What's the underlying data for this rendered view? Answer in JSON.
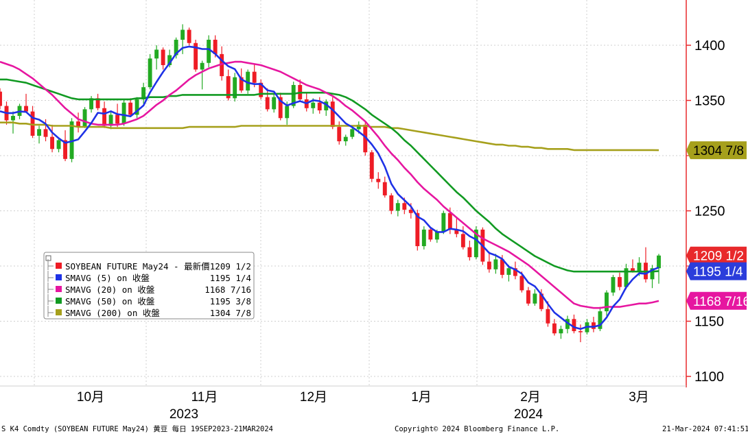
{
  "chart_data": {
    "type": "candlestick",
    "y_ticks": [
      1100,
      1150,
      1250,
      1350,
      1400
    ],
    "ylim": [
      1098,
      1435
    ],
    "x_labels": {
      "months": [
        "10月",
        "11月",
        "12月",
        "1月",
        "2月",
        "3月"
      ],
      "years": [
        "2023",
        "2024"
      ]
    },
    "colors": {
      "up": "#22aa22",
      "down": "#ee1c25",
      "sma5": "#1e32e6",
      "sma20": "#e616a0",
      "sma50": "#119a22",
      "sma200": "#a6a01c",
      "axis": "#e8292b",
      "grid": "#cfcfcf"
    },
    "candles": [
      {
        "o": 1358,
        "h": 1361,
        "l": 1342,
        "c": 1345
      },
      {
        "o": 1345,
        "h": 1349,
        "l": 1328,
        "c": 1332
      },
      {
        "o": 1332,
        "h": 1340,
        "l": 1320,
        "c": 1336
      },
      {
        "o": 1336,
        "h": 1347,
        "l": 1333,
        "c": 1345
      },
      {
        "o": 1345,
        "h": 1356,
        "l": 1339,
        "c": 1340
      },
      {
        "o": 1340,
        "h": 1345,
        "l": 1316,
        "c": 1318
      },
      {
        "o": 1318,
        "h": 1327,
        "l": 1311,
        "c": 1324
      },
      {
        "o": 1324,
        "h": 1333,
        "l": 1313,
        "c": 1317
      },
      {
        "o": 1317,
        "h": 1328,
        "l": 1303,
        "c": 1306
      },
      {
        "o": 1306,
        "h": 1316,
        "l": 1303,
        "c": 1314
      },
      {
        "o": 1314,
        "h": 1323,
        "l": 1295,
        "c": 1297
      },
      {
        "o": 1297,
        "h": 1334,
        "l": 1294,
        "c": 1331
      },
      {
        "o": 1331,
        "h": 1339,
        "l": 1321,
        "c": 1326
      },
      {
        "o": 1326,
        "h": 1344,
        "l": 1325,
        "c": 1342
      },
      {
        "o": 1342,
        "h": 1354,
        "l": 1339,
        "c": 1352
      },
      {
        "o": 1352,
        "h": 1356,
        "l": 1341,
        "c": 1343
      },
      {
        "o": 1343,
        "h": 1349,
        "l": 1325,
        "c": 1327
      },
      {
        "o": 1327,
        "h": 1340,
        "l": 1324,
        "c": 1337
      },
      {
        "o": 1337,
        "h": 1347,
        "l": 1326,
        "c": 1329
      },
      {
        "o": 1329,
        "h": 1351,
        "l": 1327,
        "c": 1348
      },
      {
        "o": 1348,
        "h": 1352,
        "l": 1335,
        "c": 1337
      },
      {
        "o": 1337,
        "h": 1353,
        "l": 1334,
        "c": 1351
      },
      {
        "o": 1351,
        "h": 1366,
        "l": 1347,
        "c": 1362
      },
      {
        "o": 1362,
        "h": 1392,
        "l": 1360,
        "c": 1388
      },
      {
        "o": 1388,
        "h": 1400,
        "l": 1378,
        "c": 1396
      },
      {
        "o": 1396,
        "h": 1398,
        "l": 1378,
        "c": 1382
      },
      {
        "o": 1382,
        "h": 1396,
        "l": 1380,
        "c": 1391
      },
      {
        "o": 1391,
        "h": 1407,
        "l": 1388,
        "c": 1405
      },
      {
        "o": 1405,
        "h": 1419,
        "l": 1392,
        "c": 1414
      },
      {
        "o": 1414,
        "h": 1416,
        "l": 1400,
        "c": 1402
      },
      {
        "o": 1402,
        "h": 1405,
        "l": 1376,
        "c": 1378
      },
      {
        "o": 1378,
        "h": 1386,
        "l": 1360,
        "c": 1384
      },
      {
        "o": 1384,
        "h": 1409,
        "l": 1380,
        "c": 1405
      },
      {
        "o": 1405,
        "h": 1409,
        "l": 1389,
        "c": 1392
      },
      {
        "o": 1392,
        "h": 1399,
        "l": 1368,
        "c": 1372
      },
      {
        "o": 1372,
        "h": 1378,
        "l": 1350,
        "c": 1352
      },
      {
        "o": 1352,
        "h": 1375,
        "l": 1349,
        "c": 1371
      },
      {
        "o": 1371,
        "h": 1379,
        "l": 1357,
        "c": 1359
      },
      {
        "o": 1359,
        "h": 1378,
        "l": 1356,
        "c": 1376
      },
      {
        "o": 1376,
        "h": 1383,
        "l": 1362,
        "c": 1366
      },
      {
        "o": 1366,
        "h": 1369,
        "l": 1351,
        "c": 1353
      },
      {
        "o": 1353,
        "h": 1361,
        "l": 1340,
        "c": 1342
      },
      {
        "o": 1342,
        "h": 1356,
        "l": 1339,
        "c": 1353
      },
      {
        "o": 1353,
        "h": 1357,
        "l": 1332,
        "c": 1334
      },
      {
        "o": 1334,
        "h": 1349,
        "l": 1328,
        "c": 1345
      },
      {
        "o": 1345,
        "h": 1367,
        "l": 1343,
        "c": 1364
      },
      {
        "o": 1364,
        "h": 1369,
        "l": 1349,
        "c": 1351
      },
      {
        "o": 1351,
        "h": 1357,
        "l": 1340,
        "c": 1343
      },
      {
        "o": 1343,
        "h": 1352,
        "l": 1338,
        "c": 1348
      },
      {
        "o": 1348,
        "h": 1353,
        "l": 1338,
        "c": 1341
      },
      {
        "o": 1341,
        "h": 1351,
        "l": 1336,
        "c": 1349
      },
      {
        "o": 1349,
        "h": 1353,
        "l": 1324,
        "c": 1326
      },
      {
        "o": 1326,
        "h": 1331,
        "l": 1310,
        "c": 1313
      },
      {
        "o": 1313,
        "h": 1319,
        "l": 1309,
        "c": 1317
      },
      {
        "o": 1317,
        "h": 1327,
        "l": 1315,
        "c": 1324
      },
      {
        "o": 1324,
        "h": 1331,
        "l": 1320,
        "c": 1328
      },
      {
        "o": 1328,
        "h": 1331,
        "l": 1300,
        "c": 1303
      },
      {
        "o": 1303,
        "h": 1305,
        "l": 1276,
        "c": 1279
      },
      {
        "o": 1279,
        "h": 1285,
        "l": 1270,
        "c": 1276
      },
      {
        "o": 1276,
        "h": 1281,
        "l": 1262,
        "c": 1264
      },
      {
        "o": 1264,
        "h": 1266,
        "l": 1247,
        "c": 1250
      },
      {
        "o": 1250,
        "h": 1260,
        "l": 1245,
        "c": 1257
      },
      {
        "o": 1257,
        "h": 1262,
        "l": 1247,
        "c": 1251
      },
      {
        "o": 1251,
        "h": 1257,
        "l": 1243,
        "c": 1248
      },
      {
        "o": 1248,
        "h": 1251,
        "l": 1214,
        "c": 1218
      },
      {
        "o": 1218,
        "h": 1236,
        "l": 1215,
        "c": 1233
      },
      {
        "o": 1233,
        "h": 1235,
        "l": 1222,
        "c": 1224
      },
      {
        "o": 1224,
        "h": 1233,
        "l": 1221,
        "c": 1231
      },
      {
        "o": 1231,
        "h": 1250,
        "l": 1229,
        "c": 1248
      },
      {
        "o": 1248,
        "h": 1253,
        "l": 1229,
        "c": 1233
      },
      {
        "o": 1233,
        "h": 1244,
        "l": 1226,
        "c": 1229
      },
      {
        "o": 1229,
        "h": 1236,
        "l": 1215,
        "c": 1217
      },
      {
        "o": 1217,
        "h": 1223,
        "l": 1205,
        "c": 1208
      },
      {
        "o": 1208,
        "h": 1236,
        "l": 1206,
        "c": 1233
      },
      {
        "o": 1233,
        "h": 1235,
        "l": 1201,
        "c": 1204
      },
      {
        "o": 1204,
        "h": 1213,
        "l": 1194,
        "c": 1197
      },
      {
        "o": 1197,
        "h": 1211,
        "l": 1193,
        "c": 1206
      },
      {
        "o": 1206,
        "h": 1210,
        "l": 1189,
        "c": 1192
      },
      {
        "o": 1192,
        "h": 1201,
        "l": 1186,
        "c": 1198
      },
      {
        "o": 1198,
        "h": 1204,
        "l": 1188,
        "c": 1191
      },
      {
        "o": 1191,
        "h": 1195,
        "l": 1176,
        "c": 1178
      },
      {
        "o": 1178,
        "h": 1181,
        "l": 1164,
        "c": 1166
      },
      {
        "o": 1166,
        "h": 1179,
        "l": 1164,
        "c": 1175
      },
      {
        "o": 1175,
        "h": 1179,
        "l": 1159,
        "c": 1161
      },
      {
        "o": 1161,
        "h": 1168,
        "l": 1145,
        "c": 1148
      },
      {
        "o": 1148,
        "h": 1152,
        "l": 1137,
        "c": 1139
      },
      {
        "o": 1139,
        "h": 1146,
        "l": 1134,
        "c": 1143
      },
      {
        "o": 1143,
        "h": 1155,
        "l": 1139,
        "c": 1152
      },
      {
        "o": 1152,
        "h": 1156,
        "l": 1139,
        "c": 1141
      },
      {
        "o": 1141,
        "h": 1147,
        "l": 1131,
        "c": 1140
      },
      {
        "o": 1140,
        "h": 1152,
        "l": 1138,
        "c": 1149
      },
      {
        "o": 1149,
        "h": 1154,
        "l": 1140,
        "c": 1143
      },
      {
        "o": 1143,
        "h": 1163,
        "l": 1141,
        "c": 1159
      },
      {
        "o": 1159,
        "h": 1178,
        "l": 1155,
        "c": 1176
      },
      {
        "o": 1176,
        "h": 1192,
        "l": 1173,
        "c": 1190
      },
      {
        "o": 1190,
        "h": 1194,
        "l": 1178,
        "c": 1181
      },
      {
        "o": 1181,
        "h": 1202,
        "l": 1179,
        "c": 1198
      },
      {
        "o": 1198,
        "h": 1206,
        "l": 1194,
        "c": 1195
      },
      {
        "o": 1195,
        "h": 1208,
        "l": 1191,
        "c": 1203
      },
      {
        "o": 1203,
        "h": 1217,
        "l": 1185,
        "c": 1188
      },
      {
        "o": 1188,
        "h": 1201,
        "l": 1180,
        "c": 1198
      },
      {
        "o": 1198,
        "h": 1211,
        "l": 1184,
        "c": 1209.5
      }
    ],
    "series": [
      {
        "label": "SOYBEAN FUTURE May24 - 最新價",
        "value": "1209 1/2",
        "badge": "1209 1/2",
        "badge_bg": "#e8292b",
        "badge_fg": "#ffffff",
        "badge_value": 1209.5
      },
      {
        "label": "SMAVG (5)  on 收盤",
        "value": "1195 1/4",
        "badge": "1195 1/4",
        "badge_bg": "#2b3ddb",
        "badge_fg": "#ffffff",
        "badge_value": 1195.25
      },
      {
        "label": "SMAVG (20)  on 收盤",
        "value": "1168 7/16",
        "badge": "1168 7/16",
        "badge_bg": "#e616a0",
        "badge_fg": "#ffffff",
        "badge_value": 1168.44
      },
      {
        "label": "SMAVG (50)  on 收盤",
        "value": "1195 3/8"
      },
      {
        "label": "SMAVG (200) on 收盤",
        "value": "1304 7/8",
        "badge": "1304 7/8",
        "badge_bg": "#a6a01c",
        "badge_fg": "#000000",
        "badge_value": 1304.88
      }
    ],
    "sma200": [
      1330,
      1330,
      1330,
      1329,
      1329,
      1328,
      1328,
      1328,
      1327,
      1327,
      1327,
      1327,
      1326,
      1326,
      1326,
      1326,
      1326,
      1325,
      1325,
      1325,
      1325,
      1325,
      1325,
      1325,
      1325,
      1325,
      1325,
      1325,
      1325,
      1326,
      1326,
      1326,
      1326,
      1326,
      1326,
      1326,
      1326,
      1327,
      1327,
      1327,
      1327,
      1327,
      1327,
      1327,
      1327,
      1327,
      1327,
      1327,
      1327,
      1327,
      1327,
      1327,
      1327,
      1327,
      1327,
      1327,
      1327,
      1326,
      1326,
      1326,
      1325,
      1325,
      1324,
      1323,
      1322,
      1321,
      1320,
      1319,
      1318,
      1317,
      1316,
      1315,
      1314,
      1313,
      1312,
      1311,
      1310,
      1310,
      1309,
      1309,
      1308,
      1308,
      1307,
      1307,
      1306,
      1306,
      1306,
      1306,
      1305,
      1305,
      1305,
      1305,
      1305,
      1305,
      1305,
      1305,
      1305,
      1305,
      1305,
      1305,
      1305,
      1304.9
    ],
    "sma50": [
      1369,
      1369,
      1368,
      1367,
      1366,
      1364,
      1362,
      1360,
      1358,
      1356,
      1354,
      1352,
      1351,
      1351,
      1351,
      1351,
      1351,
      1351,
      1351,
      1351,
      1351,
      1352,
      1352,
      1353,
      1353,
      1353,
      1354,
      1354,
      1355,
      1355,
      1355,
      1355,
      1355,
      1355,
      1355,
      1355,
      1355,
      1355,
      1355,
      1355,
      1356,
      1356,
      1356,
      1356,
      1356,
      1356,
      1357,
      1357,
      1357,
      1357,
      1357,
      1356,
      1355,
      1353,
      1350,
      1346,
      1342,
      1337,
      1333,
      1329,
      1325,
      1320,
      1314,
      1309,
      1303,
      1297,
      1291,
      1285,
      1279,
      1273,
      1267,
      1262,
      1256,
      1250,
      1245,
      1240,
      1234,
      1229,
      1225,
      1221,
      1217,
      1213,
      1209,
      1206,
      1203,
      1200,
      1198,
      1196,
      1195,
      1195,
      1195,
      1195,
      1195,
      1195,
      1195,
      1195,
      1195,
      1195,
      1195,
      1195,
      1195,
      1195.4
    ],
    "sma20": [
      1385,
      1383,
      1381,
      1378,
      1374,
      1370,
      1365,
      1360,
      1355,
      1349,
      1343,
      1338,
      1333,
      1331,
      1329,
      1328,
      1328,
      1328,
      1328,
      1329,
      1331,
      1333,
      1336,
      1341,
      1346,
      1350,
      1355,
      1359,
      1364,
      1369,
      1373,
      1376,
      1379,
      1381,
      1383,
      1384,
      1385,
      1385,
      1384,
      1383,
      1382,
      1380,
      1378,
      1376,
      1373,
      1370,
      1367,
      1364,
      1362,
      1360,
      1357,
      1354,
      1350,
      1345,
      1341,
      1336,
      1331,
      1324,
      1317,
      1309,
      1302,
      1296,
      1289,
      1283,
      1276,
      1270,
      1265,
      1260,
      1254,
      1249,
      1244,
      1239,
      1234,
      1229,
      1225,
      1222,
      1219,
      1216,
      1213,
      1209,
      1205,
      1201,
      1196,
      1191,
      1186,
      1181,
      1176,
      1171,
      1166,
      1164,
      1163,
      1162,
      1162,
      1163,
      1163,
      1163,
      1164,
      1165,
      1166,
      1166,
      1167,
      1168.4
    ]
  }
}
